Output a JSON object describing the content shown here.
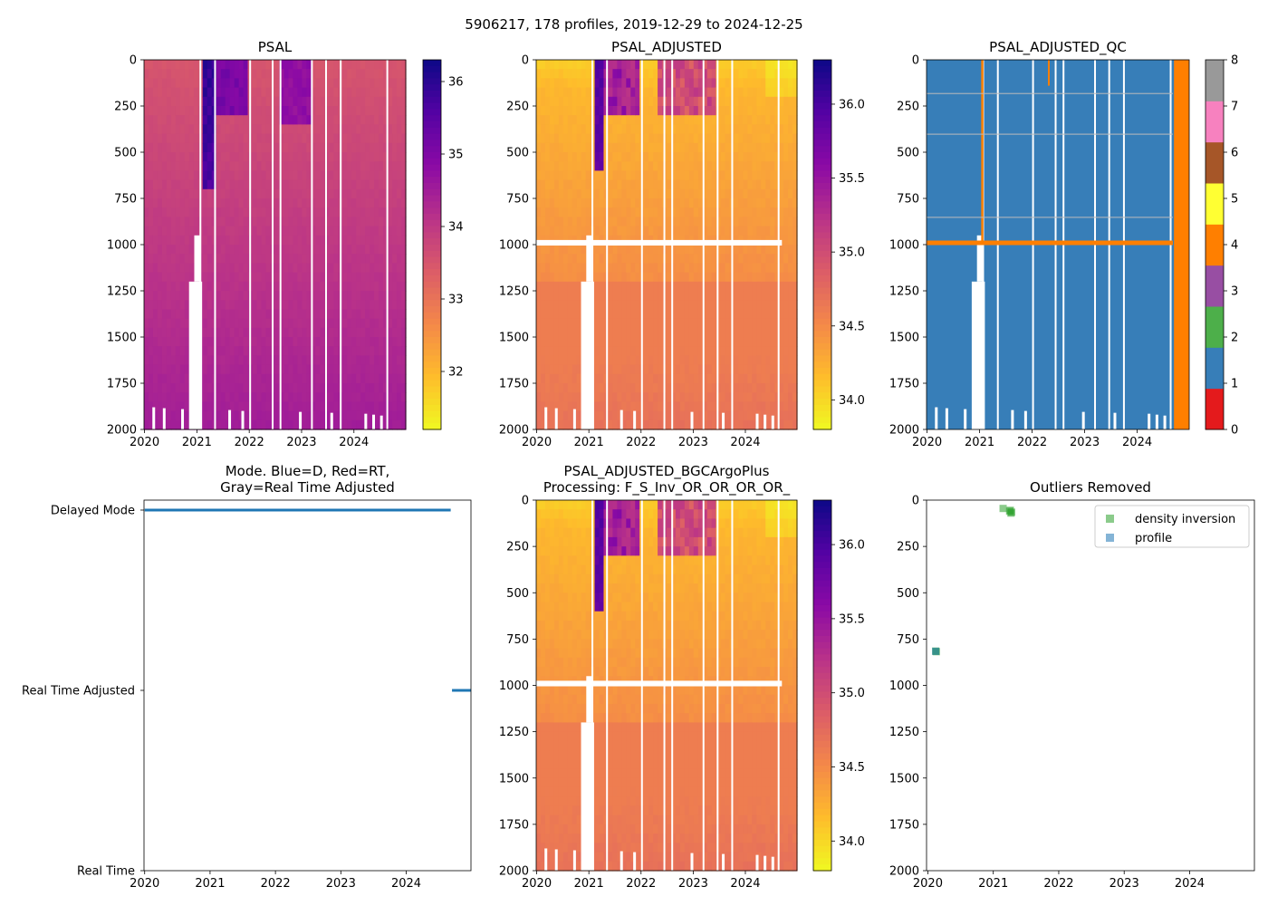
{
  "suptitle": "5906217, 178 profiles, 2019-12-29 to 2024-12-25",
  "colors": {
    "qc_blue": "#377eb8",
    "qc_orange": "#ff7f00",
    "mode_blue": "#1f77b4",
    "green": "#2ca02c"
  },
  "chart_data": [
    {
      "id": "psal",
      "type": "heatmap",
      "title": "PSAL",
      "xlabel": "",
      "ylabel": "",
      "x_ticks": [
        "2020",
        "2021",
        "2022",
        "2023",
        "2024"
      ],
      "y_ticks": [
        "0",
        "250",
        "500",
        "750",
        "1000",
        "1250",
        "1500",
        "1750",
        "2000"
      ],
      "xlim": [
        2019.99,
        2024.99
      ],
      "ylim": [
        2000,
        0
      ],
      "colormap": "plasma_r",
      "colorbar": {
        "range": [
          31.2,
          36.3
        ],
        "ticks": [
          "32",
          "33",
          "34",
          "35",
          "36"
        ],
        "tick_values": [
          32,
          33,
          34,
          35,
          36
        ]
      },
      "typical_values": {
        "surface": 33.6,
        "deep": 34.6,
        "high_salinity_patch_2021": 36.2
      }
    },
    {
      "id": "psal_adjusted",
      "type": "heatmap",
      "title": "PSAL_ADJUSTED",
      "x_ticks": [
        "2020",
        "2021",
        "2022",
        "2023",
        "2024"
      ],
      "y_ticks": [
        "0",
        "250",
        "500",
        "750",
        "1000",
        "1250",
        "1500",
        "1750",
        "2000"
      ],
      "xlim": [
        2019.99,
        2024.99
      ],
      "ylim": [
        2000,
        0
      ],
      "colormap": "plasma_r",
      "colorbar": {
        "range": [
          33.8,
          36.3
        ],
        "ticks": [
          "34.0",
          "34.5",
          "35.0",
          "35.5",
          "36.0"
        ],
        "tick_values": [
          34.0,
          34.5,
          35.0,
          35.5,
          36.0
        ]
      },
      "data_gap_depth": 990
    },
    {
      "id": "psal_adjusted_qc",
      "type": "heatmap",
      "title": "PSAL_ADJUSTED_QC",
      "x_ticks": [
        "2020",
        "2021",
        "2022",
        "2023",
        "2024"
      ],
      "y_ticks": [
        "0",
        "250",
        "500",
        "750",
        "1000",
        "1250",
        "1500",
        "1750",
        "2000"
      ],
      "xlim": [
        2019.99,
        2024.99
      ],
      "ylim": [
        2000,
        0
      ],
      "colorbar": {
        "ticks": [
          "0",
          "1",
          "2",
          "3",
          "4",
          "5",
          "6",
          "7",
          "8"
        ],
        "classes": [
          "#e41a1c",
          "#377eb8",
          "#4daf4a",
          "#984ea3",
          "#ff7f00",
          "#ffff33",
          "#a65628",
          "#f781bf",
          "#999999"
        ]
      },
      "dominant_flag": 1,
      "flag4_depth": 990
    },
    {
      "id": "mode",
      "type": "line",
      "title": "Mode. Blue=D, Red=RT,",
      "title2": "Gray=Real Time Adjusted",
      "x_ticks": [
        "2020",
        "2021",
        "2022",
        "2023",
        "2024"
      ],
      "y_categories": [
        "Delayed Mode",
        "Real Time Adjusted",
        "Real Time"
      ],
      "xlim": [
        2019.99,
        2024.99
      ],
      "series": [
        {
          "name": "Delayed Mode",
          "x": [
            2020.0,
            2024.68
          ],
          "level": 0
        },
        {
          "name": "Real Time Adjusted",
          "x": [
            2024.7,
            2024.99
          ],
          "level": 1
        }
      ]
    },
    {
      "id": "bgc",
      "type": "heatmap",
      "title": "PSAL_ADJUSTED_BGCArgoPlus",
      "title2": "Processing: F_S_Inv_OR_OR_OR_OR_",
      "x_ticks": [
        "2020",
        "2021",
        "2022",
        "2023",
        "2024"
      ],
      "y_ticks": [
        "0",
        "250",
        "500",
        "750",
        "1000",
        "1250",
        "1500",
        "1750",
        "2000"
      ],
      "xlim": [
        2019.99,
        2024.99
      ],
      "ylim": [
        2000,
        0
      ],
      "colormap": "plasma_r",
      "colorbar": {
        "range": [
          33.8,
          36.3
        ],
        "ticks": [
          "34.0",
          "34.5",
          "35.0",
          "35.5",
          "36.0"
        ],
        "tick_values": [
          34.0,
          34.5,
          35.0,
          35.5,
          36.0
        ]
      }
    },
    {
      "id": "outliers",
      "type": "scatter",
      "title": "Outliers Removed",
      "x_ticks": [
        "2020",
        "2021",
        "2022",
        "2023",
        "2024"
      ],
      "y_ticks": [
        "0",
        "250",
        "500",
        "750",
        "1000",
        "1250",
        "1500",
        "1750",
        "2000"
      ],
      "xlim": [
        2019.98,
        2024.99
      ],
      "ylim": [
        2000,
        0
      ],
      "legend": {
        "placement": "top-right",
        "entries": [
          "density inversion",
          "profile"
        ]
      },
      "series": [
        {
          "name": "density inversion",
          "color": "#2ca02c",
          "points": [
            [
              2020.12,
              815
            ],
            [
              2020.13,
              818
            ],
            [
              2021.15,
              45
            ],
            [
              2021.25,
              60
            ],
            [
              2021.27,
              70
            ],
            [
              2021.28,
              65
            ],
            [
              2021.26,
              55
            ]
          ]
        },
        {
          "name": "profile",
          "color": "#1f77b4",
          "points": [
            [
              2020.12,
              816
            ]
          ]
        }
      ]
    }
  ]
}
